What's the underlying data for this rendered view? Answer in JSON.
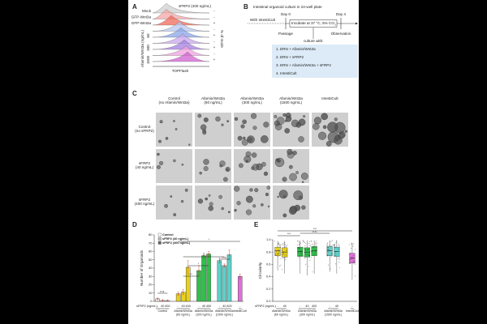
{
  "panel_labels": [
    "A",
    "B",
    "C",
    "D",
    "E"
  ],
  "panel_a": {
    "rows": [
      "Mock",
      "GFP-Wnt3a",
      "GFP-Wnt3a"
    ],
    "treatment": "sFRP2 (400 ng/mL)",
    "signs": [
      "-",
      "-",
      "+",
      "-",
      "+",
      "-",
      "+",
      "-",
      "+"
    ],
    "group_label": "Afamin/Wnt3a (ng/mL)",
    "doses": [
      60,
      300,
      1500
    ],
    "x_label": "TOPFlash",
    "y_label": "% of mode"
  },
  "panel_b": {
    "title": "Intestinal organoid culture in 24-well plate",
    "day0": "Day 0",
    "day4": "Day 4",
    "pre": "With IntestiCult",
    "incubate": "Incubate at 37 °C, 5% CO",
    "co2_sub": "2",
    "passage": "Passage",
    "observation": "Observation",
    "culture": "culture with:",
    "conditions": [
      "1. ERN + Afamin/Wnt3a",
      "2. ERN + sFRP2",
      "3. ERN + Afamin/Wnt3a + sFRP2",
      "4. IntestiCult"
    ]
  },
  "panel_c": {
    "columns": [
      [
        "Control",
        "(no Afamin/Wnt3a)"
      ],
      [
        "Afamin/Wnt3a",
        "(60 ng/mL)"
      ],
      [
        "Afamin/Wnt3a",
        "(300 ng/mL)"
      ],
      [
        "Afamin/Wnt3a",
        "(1500 ng/mL)"
      ],
      [
        "IntestiCult"
      ]
    ],
    "rows": [
      [
        "Control",
        "(no sFRP2)"
      ],
      [
        "sFRP2",
        "(40 ng/mL)"
      ],
      [
        "sFRP2",
        "(400 ng/mL)"
      ]
    ]
  },
  "chart_data": [
    {
      "type": "bar",
      "y_label": "Number of Organoids",
      "ylim": [
        0,
        80
      ],
      "yticks": [
        0,
        10,
        20,
        30,
        40,
        50,
        60,
        70,
        80
      ],
      "legend": [
        "Control",
        "sFRP2 (40 ng/mL)",
        "sFRP2 (400 ng/mL)"
      ],
      "legend_colors": [
        "#ffffff",
        "#bbbbbb",
        "#666666"
      ],
      "row_label": "sFRP2 (ng/mL)",
      "significance": [
        "n.s.",
        "**",
        "*",
        "*",
        "n.s.",
        "*"
      ],
      "groups": [
        {
          "label": [
            "Control"
          ],
          "color": "#f4f4f4",
          "categories": [
            "-",
            "40",
            "400"
          ],
          "values": [
            3,
            1,
            1
          ],
          "errors": [
            1,
            1,
            0.5
          ]
        },
        {
          "label": [
            "Afamin/Wnt3a",
            "(60 ng/mL)"
          ],
          "color": "#e8d21c",
          "categories": [
            "-",
            "40",
            "400"
          ],
          "values": [
            9,
            11,
            41
          ],
          "errors": [
            2,
            3,
            8
          ]
        },
        {
          "label": [
            "Afamin/Wnt3a",
            "(300 ng/mL)"
          ],
          "color": "#2fc04a",
          "categories": [
            "-",
            "40",
            "400"
          ],
          "values": [
            37,
            55,
            57
          ],
          "errors": [
            6,
            3,
            3
          ]
        },
        {
          "label": [
            "Afamin/Wnt3a",
            "(1500 ng/mL)"
          ],
          "color": "#5fd0c8",
          "categories": [
            "-",
            "40",
            "400"
          ],
          "values": [
            49,
            43,
            56
          ],
          "errors": [
            3,
            2,
            6
          ]
        },
        {
          "label": [
            "IntestiCult"
          ],
          "color": "#e070d8",
          "categories": [
            "-"
          ],
          "values": [
            30
          ],
          "errors": [
            3
          ]
        }
      ]
    },
    {
      "type": "box",
      "y_label": "Circularity",
      "ylim": [
        0,
        1
      ],
      "yticks": [
        {
          "value": 0,
          "label": "0.0"
        },
        0.2,
        0.4,
        0.6,
        0.8,
        {
          "value": 1,
          "label": "1.0"
        }
      ],
      "row_label": "sFRP2 (ng/mL)",
      "significance": [
        "***",
        "n.s.",
        "***"
      ],
      "groups": [
        {
          "label": [
            "Afamin/Wnt3a",
            "(60 ng/mL)"
          ],
          "color": "#e8d21c",
          "categories": [
            "-",
            "40"
          ],
          "boxes": [
            {
              "low": 0.5,
              "q1": 0.74,
              "median": 0.82,
              "q3": 0.88,
              "high": 0.98
            },
            {
              "low": 0.45,
              "q1": 0.72,
              "median": 0.8,
              "q3": 0.87,
              "high": 0.98
            }
          ]
        },
        {
          "label": [
            "Afamin/Wnt3a",
            "(300 ng/mL)"
          ],
          "color": "#2fc04a",
          "categories": [
            "-",
            "40",
            "400"
          ],
          "boxes": [
            {
              "low": 0.45,
              "q1": 0.73,
              "median": 0.81,
              "q3": 0.88,
              "high": 0.99
            },
            {
              "low": 0.42,
              "q1": 0.72,
              "median": 0.8,
              "q3": 0.87,
              "high": 0.99
            },
            {
              "low": 0.45,
              "q1": 0.74,
              "median": 0.82,
              "q3": 0.89,
              "high": 0.99
            }
          ]
        },
        {
          "label": [
            "Afamin/Wnt3a",
            "(1500 ng/mL)"
          ],
          "color": "#5fd0c8",
          "categories": [
            "-",
            "40"
          ],
          "boxes": [
            {
              "low": 0.48,
              "q1": 0.74,
              "median": 0.82,
              "q3": 0.89,
              "high": 0.99
            },
            {
              "low": 0.45,
              "q1": 0.73,
              "median": 0.81,
              "q3": 0.88,
              "high": 0.99
            }
          ]
        },
        {
          "label": [
            "IntestiCult"
          ],
          "color": "#e070d8",
          "categories": [
            "-"
          ],
          "boxes": [
            {
              "low": 0.35,
              "q1": 0.62,
              "median": 0.7,
              "q3": 0.78,
              "high": 0.95
            }
          ]
        }
      ]
    }
  ]
}
